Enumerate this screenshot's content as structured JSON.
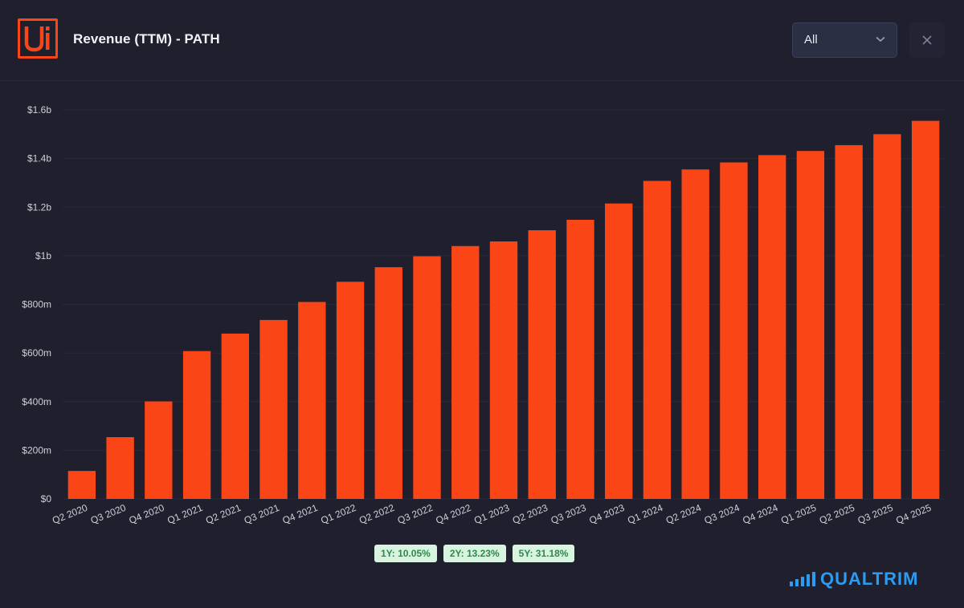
{
  "header": {
    "logo_text": "Ui",
    "title": "Revenue (TTM) - PATH",
    "period_select": {
      "value": "All"
    }
  },
  "colors": {
    "bar": "#fa4616",
    "background": "#1f1f2e",
    "grid": "#2a2a3a",
    "axis_text": "#d0d0da"
  },
  "icons": {
    "logo": "uipath-logo-icon",
    "dropdown": "chevron-down-icon",
    "close": "close-icon",
    "brand": "signal-bars-icon"
  },
  "growth_badges": [
    {
      "label": "1Y: 10.05%"
    },
    {
      "label": "2Y: 13.23%"
    },
    {
      "label": "5Y: 31.18%"
    }
  ],
  "brand": {
    "text": "QUALTRIM"
  },
  "chart_data": {
    "type": "bar",
    "title": "Revenue (TTM) - PATH",
    "xlabel": "",
    "ylabel": "",
    "ylim": [
      0,
      1600
    ],
    "y_unit": "millions USD",
    "y_ticks": [
      0,
      200,
      400,
      600,
      800,
      1000,
      1200,
      1400,
      1600
    ],
    "y_tick_labels": [
      "$0",
      "$200m",
      "$400m",
      "$600m",
      "$800m",
      "$1b",
      "$1.2b",
      "$1.4b",
      "$1.6b"
    ],
    "grid": true,
    "categories": [
      "Q2 2020",
      "Q3 2020",
      "Q4 2020",
      "Q1 2021",
      "Q2 2021",
      "Q3 2021",
      "Q4 2021",
      "Q1 2022",
      "Q2 2022",
      "Q3 2022",
      "Q4 2022",
      "Q1 2023",
      "Q2 2023",
      "Q3 2023",
      "Q4 2023",
      "Q1 2024",
      "Q2 2024",
      "Q3 2024",
      "Q4 2024",
      "Q1 2025",
      "Q2 2025",
      "Q3 2025",
      "Q4 2025"
    ],
    "series": [
      {
        "name": "Revenue (TTM)",
        "values": [
          115,
          254,
          401,
          608,
          680,
          736,
          810,
          893,
          953,
          998,
          1040,
          1059,
          1105,
          1148,
          1215,
          1308,
          1355,
          1384,
          1414,
          1431,
          1455,
          1500,
          1555
        ]
      }
    ]
  }
}
